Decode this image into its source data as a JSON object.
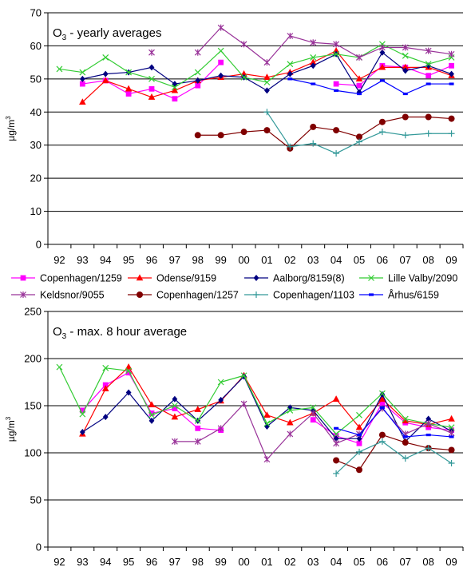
{
  "chart_data": [
    {
      "type": "line",
      "title_main": "O",
      "title_sub": "3",
      "title_rest": " - yearly averages",
      "ylabel": "µg/m",
      "ylabel_sup": "3",
      "ylim": [
        0,
        70
      ],
      "ystep": 10,
      "grid": true,
      "categories": [
        "92",
        "93",
        "94",
        "95",
        "96",
        "97",
        "98",
        "99",
        "00",
        "01",
        "02",
        "03",
        "04",
        "05",
        "06",
        "07",
        "08",
        "09"
      ],
      "series": [
        {
          "name": "Copenhagen/1259",
          "color": "#ff00ff",
          "marker": "square",
          "values": [
            null,
            48.5,
            49.5,
            45.5,
            47,
            44,
            48,
            55,
            null,
            null,
            null,
            null,
            48.5,
            48,
            54,
            53.5,
            51,
            54
          ]
        },
        {
          "name": "Odense/9159",
          "color": "#ff0000",
          "marker": "triangle",
          "values": [
            null,
            43,
            49.5,
            47,
            44.5,
            46.5,
            49.5,
            50.5,
            51.5,
            50.5,
            52,
            55,
            58.5,
            50,
            53.5,
            53.5,
            53.5,
            51
          ]
        },
        {
          "name": "Aalborg/8159(8)",
          "color": "#000080",
          "marker": "diamond",
          "values": [
            null,
            50,
            51.5,
            52,
            53.5,
            48.5,
            49.5,
            51,
            50.5,
            46.5,
            51.5,
            54,
            57.5,
            46,
            58,
            52.5,
            54,
            51.5
          ]
        },
        {
          "name": "Lille Valby/2090",
          "color": "#33cc33",
          "marker": "x",
          "values": [
            53,
            52,
            56.5,
            52,
            50,
            47.5,
            52,
            58.5,
            50.5,
            49,
            54.5,
            56.5,
            57.5,
            56.5,
            60.5,
            57,
            54.5,
            56.5
          ]
        },
        {
          "name": "Keldsnor/9055",
          "color": "#993399",
          "marker": "star",
          "values": [
            null,
            null,
            null,
            null,
            58,
            null,
            58,
            65.5,
            60.5,
            55,
            63,
            61,
            60.5,
            56.5,
            59.5,
            59.5,
            58.5,
            57.5
          ]
        },
        {
          "name": "Copenhagen/1257",
          "color": "#800000",
          "marker": "circle",
          "values": [
            null,
            null,
            null,
            null,
            null,
            null,
            33,
            33,
            34,
            34.5,
            29,
            35.5,
            34.5,
            32.5,
            37,
            38.5,
            38.5,
            38
          ]
        },
        {
          "name": "Copenhagen/1103",
          "color": "#339999",
          "marker": "plus",
          "values": [
            null,
            null,
            null,
            null,
            null,
            null,
            null,
            null,
            null,
            40,
            29.5,
            30.5,
            27.5,
            31,
            34,
            33,
            33.5,
            33.5
          ]
        },
        {
          "name": "Århus/6159",
          "color": "#0000ff",
          "marker": "dash",
          "values": [
            null,
            null,
            null,
            null,
            null,
            null,
            null,
            null,
            null,
            null,
            50,
            48.5,
            46.5,
            45.5,
            49.5,
            45.5,
            48.5,
            48.5
          ]
        }
      ]
    },
    {
      "type": "line",
      "title_main": "O",
      "title_sub": "3",
      "title_rest": " - max. 8 hour average",
      "ylabel": "µg/m",
      "ylabel_sup": "3",
      "ylim": [
        0,
        250
      ],
      "ystep": 50,
      "grid": true,
      "categories": [
        "92",
        "93",
        "94",
        "95",
        "96",
        "97",
        "98",
        "99",
        "00",
        "01",
        "02",
        "03",
        "04",
        "05",
        "06",
        "07",
        "08",
        "09"
      ],
      "series": [
        {
          "name": "Copenhagen/1259",
          "color": "#ff00ff",
          "marker": "square",
          "values": [
            null,
            145,
            172,
            185,
            142,
            147,
            126,
            124,
            null,
            null,
            null,
            135,
            118,
            110,
            153,
            132,
            127,
            124
          ]
        },
        {
          "name": "Odense/9159",
          "color": "#ff0000",
          "marker": "triangle",
          "values": [
            null,
            120,
            168,
            191,
            151,
            138,
            146,
            155,
            182,
            140,
            132,
            142,
            157,
            127,
            157,
            134,
            130,
            136
          ]
        },
        {
          "name": "Aalborg/8159(8)",
          "color": "#000080",
          "marker": "diamond",
          "values": [
            null,
            122,
            138,
            164,
            134,
            157,
            134,
            156,
            181,
            128,
            148,
            145,
            115,
            115,
            162,
            112,
            136,
            123
          ]
        },
        {
          "name": "Lille Valby/2090",
          "color": "#33cc33",
          "marker": "x",
          "values": [
            191,
            141,
            190,
            187,
            140,
            150,
            134,
            175,
            182,
            131,
            145,
            148,
            120,
            140,
            163,
            136,
            131,
            127
          ]
        },
        {
          "name": "Keldsnor/9055",
          "color": "#993399",
          "marker": "star",
          "values": [
            null,
            null,
            null,
            null,
            null,
            112,
            112,
            126,
            152,
            93,
            120,
            142,
            110,
            120,
            147,
            120,
            131,
            121
          ]
        },
        {
          "name": "Copenhagen/1257",
          "color": "#800000",
          "marker": "circle",
          "values": [
            null,
            null,
            null,
            null,
            null,
            null,
            null,
            null,
            null,
            null,
            null,
            null,
            92,
            82,
            119,
            111,
            105,
            103
          ]
        },
        {
          "name": "Copenhagen/1103",
          "color": "#339999",
          "marker": "plus",
          "values": [
            null,
            null,
            null,
            null,
            null,
            null,
            null,
            null,
            null,
            null,
            null,
            null,
            78,
            101,
            112,
            94,
            105,
            89
          ]
        },
        {
          "name": "Århus/6159",
          "color": "#0000ff",
          "marker": "dash",
          "values": [
            null,
            null,
            null,
            null,
            null,
            null,
            null,
            null,
            null,
            null,
            null,
            null,
            126,
            119,
            148,
            117,
            119,
            117
          ]
        }
      ]
    }
  ]
}
